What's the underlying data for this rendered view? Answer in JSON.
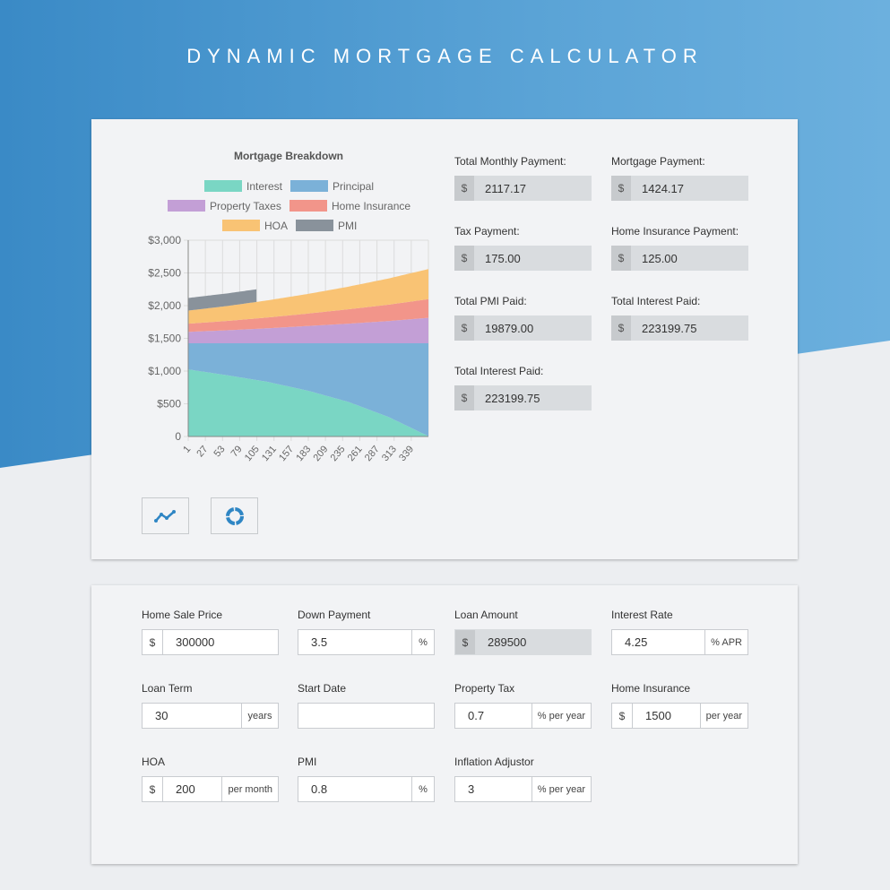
{
  "page": {
    "title": "DYNAMIC MORTGAGE CALCULATOR"
  },
  "chart_data": {
    "type": "area",
    "stacked": true,
    "title": "Mortgage Breakdown",
    "x_ticks": [
      "1",
      "27",
      "53",
      "79",
      "105",
      "131",
      "157",
      "183",
      "209",
      "235",
      "261",
      "287",
      "313",
      "339"
    ],
    "x_range": [
      1,
      360
    ],
    "y_ticks": [
      "$3,000",
      "$2,500",
      "$2,000",
      "$1,500",
      "$1,000",
      "$500",
      "0"
    ],
    "ylim": [
      0,
      3000
    ],
    "grid": true,
    "legend_position": "top",
    "series": [
      {
        "name": "Interest",
        "color": "#7ad6c4",
        "x": [
          1,
          60,
          120,
          180,
          240,
          300,
          360
        ],
        "values": [
          1025,
          935,
          835,
          700,
          530,
          300,
          5
        ]
      },
      {
        "name": "Principal",
        "color": "#7bb1d8",
        "x": [
          1,
          60,
          120,
          180,
          240,
          300,
          360
        ],
        "values": [
          399,
          489,
          589,
          724,
          894,
          1124,
          1419
        ]
      },
      {
        "name": "Property Taxes",
        "color": "#c39fd6",
        "x": [
          1,
          60,
          120,
          180,
          240,
          300,
          360
        ],
        "values": [
          175,
          200,
          230,
          265,
          300,
          340,
          390
        ]
      },
      {
        "name": "Home Insurance",
        "color": "#f2958a",
        "x": [
          1,
          60,
          120,
          180,
          240,
          300,
          360
        ],
        "values": [
          125,
          143,
          165,
          190,
          220,
          250,
          285
        ]
      },
      {
        "name": "HOA",
        "color": "#f9c374",
        "x": [
          1,
          60,
          120,
          180,
          240,
          300,
          360
        ],
        "values": [
          200,
          228,
          262,
          300,
          345,
          400,
          460
        ]
      },
      {
        "name": "PMI",
        "color": "#89929b",
        "x": [
          1,
          40,
          80,
          104
        ],
        "values": [
          193,
          193,
          193,
          193
        ]
      }
    ]
  },
  "stats": {
    "total_monthly": {
      "label": "Total Monthly Payment:",
      "prefix": "$",
      "value": "2117.17"
    },
    "mortgage": {
      "label": "Mortgage Payment:",
      "prefix": "$",
      "value": "1424.17"
    },
    "tax": {
      "label": "Tax Payment:",
      "prefix": "$",
      "value": "175.00"
    },
    "home_ins": {
      "label": "Home Insurance Payment:",
      "prefix": "$",
      "value": "125.00"
    },
    "total_pmi": {
      "label": "Total PMI Paid:",
      "prefix": "$",
      "value": "19879.00"
    },
    "total_interest_a": {
      "label": "Total Interest Paid:",
      "prefix": "$",
      "value": "223199.75"
    },
    "total_interest_b": {
      "label": "Total Interest Paid:",
      "prefix": "$",
      "value": "223199.75"
    }
  },
  "chart_buttons": {
    "line_icon": "line-chart-icon",
    "donut_icon": "donut-chart-icon"
  },
  "form": {
    "home_price": {
      "label": "Home Sale Price",
      "prefix": "$",
      "value": "300000"
    },
    "down_payment": {
      "label": "Down Payment",
      "value": "3.5",
      "suffix": "%"
    },
    "loan_amount": {
      "label": "Loan Amount",
      "prefix": "$",
      "value": "289500"
    },
    "interest_rate": {
      "label": "Interest Rate",
      "value": "4.25",
      "suffix": "% APR"
    },
    "loan_term": {
      "label": "Loan Term",
      "value": "30",
      "suffix": "years"
    },
    "start_date": {
      "label": "Start Date",
      "value": ""
    },
    "property_tax": {
      "label": "Property Tax",
      "value": "0.7",
      "suffix": "% per year"
    },
    "home_insurance": {
      "label": "Home Insurance",
      "prefix": "$",
      "value": "1500",
      "suffix": "per year"
    },
    "hoa": {
      "label": "HOA",
      "prefix": "$",
      "value": "200",
      "suffix": "per month"
    },
    "pmi": {
      "label": "PMI",
      "value": "0.8",
      "suffix": "%"
    },
    "inflation": {
      "label": "Inflation Adjustor",
      "value": "3",
      "suffix": "% per year"
    }
  }
}
